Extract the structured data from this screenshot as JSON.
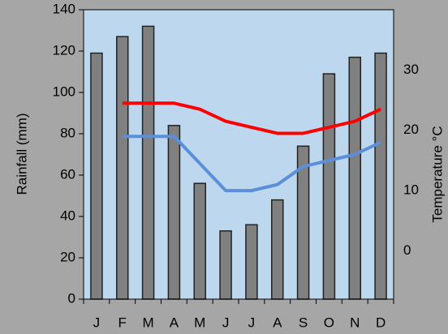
{
  "chart_data": {
    "type": "bar",
    "y_label": "Rainfall (mm)",
    "y2_label": "Temperature °C",
    "categories": [
      "J",
      "F",
      "M",
      "A",
      "M",
      "J",
      "J",
      "A",
      "S",
      "O",
      "N",
      "D"
    ],
    "series": [
      {
        "type": "bar",
        "color": "#808080",
        "values": [
          119,
          127,
          132,
          84,
          56,
          33,
          36,
          48,
          74,
          109,
          117,
          119
        ]
      },
      {
        "type": "line",
        "axis": "y2",
        "color": "#ff0000",
        "values": [
          null,
          24.5,
          24.5,
          24.5,
          23.5,
          21.5,
          20.5,
          19.5,
          19.5,
          20.5,
          21.5,
          23.5
        ]
      },
      {
        "type": "line",
        "axis": "y2",
        "color": "#5b8fd9",
        "values": [
          null,
          19,
          19,
          19,
          14.5,
          10,
          10,
          11,
          14,
          15,
          16,
          18
        ]
      }
    ],
    "ylim": [
      0,
      140
    ],
    "yticks": [
      0,
      20,
      40,
      60,
      80,
      100,
      120,
      140
    ],
    "y2lim": [
      -8,
      40
    ],
    "y2ticks": [
      0,
      10,
      20,
      30
    ]
  }
}
